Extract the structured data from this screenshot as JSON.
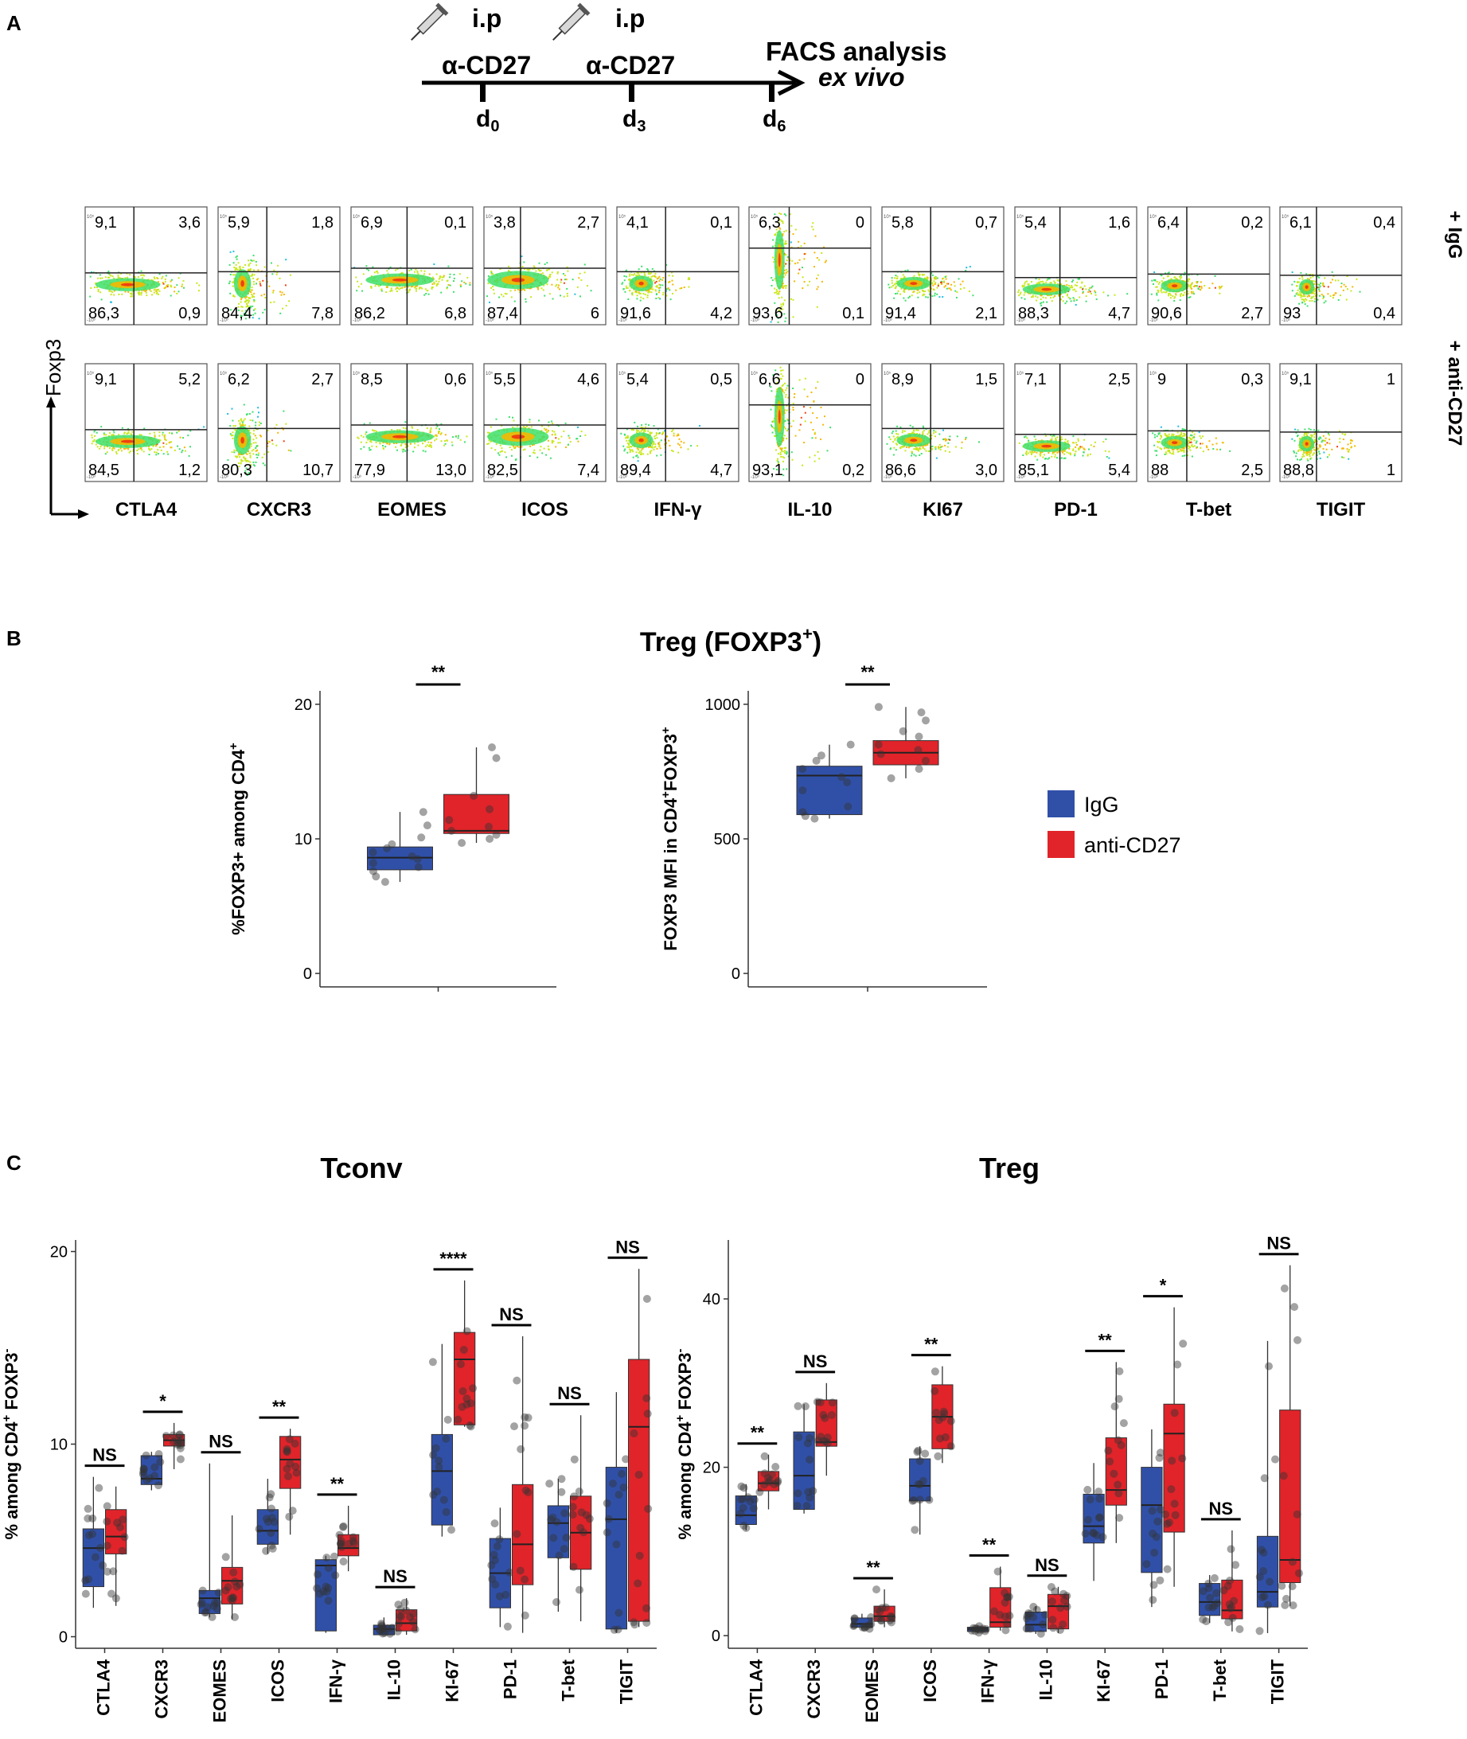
{
  "panel_labels": {
    "a": "A",
    "b": "B",
    "c": "C"
  },
  "timeline": {
    "inj1_route": "i.p",
    "inj2_route": "i.p",
    "inj1_label": "α-CD27",
    "inj2_label": "α-CD27",
    "end_label": "FACS analysis",
    "end_sub": "ex vivo",
    "days": [
      {
        "d": "d",
        "sub": "0"
      },
      {
        "d": "d",
        "sub": "3"
      },
      {
        "d": "d",
        "sub": "6"
      }
    ]
  },
  "facs": {
    "y_axis_label": "Foxp3",
    "row_labels": [
      "+ IgG",
      "+ anti-CD27"
    ],
    "markers": [
      {
        "name": "CTLA4",
        "igg": [
          "9,1",
          "3,6",
          "86,3",
          "0,9"
        ],
        "cd27": [
          "9,1",
          "5,2",
          "84,5",
          "1,2"
        ]
      },
      {
        "name": "CXCR3",
        "igg": [
          "5,9",
          "1,8",
          "84,4",
          "7,8"
        ],
        "cd27": [
          "6,2",
          "2,7",
          "80,3",
          "10,7"
        ]
      },
      {
        "name": "EOMES",
        "igg": [
          "6,9",
          "0,1",
          "86,2",
          "6,8"
        ],
        "cd27": [
          "8,5",
          "0,6",
          "77,9",
          "13,0"
        ]
      },
      {
        "name": "ICOS",
        "igg": [
          "3,8",
          "2,7",
          "87,4",
          "6"
        ],
        "cd27": [
          "5,5",
          "4,6",
          "82,5",
          "7,4"
        ]
      },
      {
        "name": "IFN-γ",
        "igg": [
          "4,1",
          "0,1",
          "91,6",
          "4,2"
        ],
        "cd27": [
          "5,4",
          "0,5",
          "89,4",
          "4,7"
        ]
      },
      {
        "name": "IL-10",
        "igg": [
          "6,3",
          "0",
          "93,6",
          "0,1"
        ],
        "cd27": [
          "6,6",
          "0",
          "93,1",
          "0,2"
        ]
      },
      {
        "name": "KI67",
        "igg": [
          "5,8",
          "0,7",
          "91,4",
          "2,1"
        ],
        "cd27": [
          "8,9",
          "1,5",
          "86,6",
          "3,0"
        ]
      },
      {
        "name": "PD-1",
        "igg": [
          "5,4",
          "1,6",
          "88,3",
          "4,7"
        ],
        "cd27": [
          "7,1",
          "2,5",
          "85,1",
          "5,4"
        ]
      },
      {
        "name": "T-bet",
        "igg": [
          "6,4",
          "0,2",
          "90,6",
          "2,7"
        ],
        "cd27": [
          "9",
          "0,3",
          "88",
          "2,5"
        ]
      },
      {
        "name": "TIGIT",
        "igg": [
          "6,1",
          "0,4",
          "93",
          "0,4"
        ],
        "cd27": [
          "9,1",
          "1",
          "88,8",
          "1"
        ]
      }
    ]
  },
  "panel_b": {
    "title": "Treg (FOXP3",
    "title_sup": "+",
    "title_end": ")",
    "legend": [
      {
        "label": "IgG",
        "color": "#3050a8"
      },
      {
        "label": "anti-CD27",
        "color": "#e0242a"
      }
    ]
  },
  "chart_data": [
    {
      "type": "box",
      "id": "b_left",
      "ylabel": "%FOXP3+ among CD4",
      "ylabel_sup": "+",
      "ylim": [
        -1,
        21
      ],
      "yticks": [
        "0",
        "10",
        "20"
      ],
      "groups": [
        {
          "name": "IgG",
          "q1": 7.7,
          "median": 8.6,
          "q3": 9.4,
          "lo": 6.8,
          "hi": 12.0,
          "points": [
            6.8,
            7.2,
            7.6,
            7.9,
            8.2,
            8.5,
            8.7,
            9.0,
            9.3,
            9.6,
            10.1,
            11.0,
            12.0
          ]
        },
        {
          "name": "anti-CD27",
          "q1": 10.4,
          "median": 10.6,
          "q3": 13.3,
          "lo": 9.7,
          "hi": 16.8,
          "points": [
            9.7,
            10.0,
            10.3,
            10.6,
            10.9,
            11.4,
            12.2,
            13.2,
            16.0,
            16.8
          ]
        }
      ],
      "significance": "**"
    },
    {
      "type": "box",
      "id": "b_right",
      "ylabel": "FOXP3 MFI in CD4",
      "ylabel_sup1": "+",
      "ylabel_mid": "FOXP3",
      "ylabel_sup2": "+",
      "ylim": [
        -50,
        1050
      ],
      "yticks": [
        "0",
        "500",
        "1000"
      ],
      "groups": [
        {
          "name": "IgG",
          "q1": 590,
          "median": 735,
          "q3": 770,
          "lo": 575,
          "hi": 850,
          "points": [
            575,
            585,
            600,
            620,
            680,
            710,
            730,
            760,
            790,
            810,
            850
          ]
        },
        {
          "name": "anti-CD27",
          "q1": 775,
          "median": 820,
          "q3": 865,
          "lo": 725,
          "hi": 990,
          "points": [
            725,
            760,
            790,
            815,
            830,
            850,
            880,
            900,
            940,
            970,
            990
          ]
        }
      ],
      "significance": "**"
    },
    {
      "type": "box",
      "id": "c_tconv",
      "title": "Tconv",
      "ylabel": "% among CD4",
      "ylabel_sup1": "+",
      "ylabel_mid": " FOXP3",
      "ylabel_sup2": "-",
      "ylim": [
        -0.6,
        20.6
      ],
      "yticks": [
        "0",
        "10",
        "20"
      ],
      "categories": [
        "CTLA4",
        "CXCR3",
        "EOMES",
        "ICOS",
        "IFN-γ",
        "IL-10",
        "KI-67",
        "PD-1",
        "T-bet",
        "TIGIT"
      ],
      "series": [
        {
          "name": "IgG",
          "boxes": [
            {
              "lo": 1.5,
              "q1": 2.6,
              "med": 4.6,
              "q3": 5.6,
              "hi": 8.3
            },
            {
              "lo": 7.6,
              "q1": 7.9,
              "med": 8.2,
              "q3": 9.4,
              "hi": 9.6
            },
            {
              "lo": 1.0,
              "q1": 1.2,
              "med": 2.0,
              "q3": 2.4,
              "hi": 9.0
            },
            {
              "lo": 4.3,
              "q1": 4.8,
              "med": 5.5,
              "q3": 6.6,
              "hi": 8.2
            },
            {
              "lo": 0.2,
              "q1": 0.3,
              "med": 3.7,
              "q3": 4.0,
              "hi": 4.2
            },
            {
              "lo": 0.1,
              "q1": 0.1,
              "med": 0.4,
              "q3": 0.6,
              "hi": 1.0
            },
            {
              "lo": 5.2,
              "q1": 5.8,
              "med": 8.6,
              "q3": 10.5,
              "hi": 15.2
            },
            {
              "lo": 0.5,
              "q1": 1.5,
              "med": 3.3,
              "q3": 5.1,
              "hi": 6.7
            },
            {
              "lo": 1.3,
              "q1": 4.1,
              "med": 5.9,
              "q3": 6.8,
              "hi": 8.2
            },
            {
              "lo": 0.2,
              "q1": 0.4,
              "med": 6.1,
              "q3": 8.8,
              "hi": 12.7
            }
          ]
        },
        {
          "name": "anti-CD27",
          "boxes": [
            {
              "lo": 1.6,
              "q1": 4.3,
              "med": 5.2,
              "q3": 6.6,
              "hi": 7.8
            },
            {
              "lo": 8.7,
              "q1": 9.9,
              "med": 10.2,
              "q3": 10.5,
              "hi": 11.1
            },
            {
              "lo": 0.9,
              "q1": 1.7,
              "med": 2.9,
              "q3": 3.6,
              "hi": 6.3
            },
            {
              "lo": 5.3,
              "q1": 7.7,
              "med": 9.2,
              "q3": 10.4,
              "hi": 10.8
            },
            {
              "lo": 3.4,
              "q1": 4.2,
              "med": 4.6,
              "q3": 5.3,
              "hi": 6.8
            },
            {
              "lo": 0.1,
              "q1": 0.3,
              "med": 0.7,
              "q3": 1.4,
              "hi": 2.0
            },
            {
              "lo": 10.9,
              "q1": 11.0,
              "med": 14.4,
              "q3": 15.8,
              "hi": 18.5
            },
            {
              "lo": 0.2,
              "q1": 2.7,
              "med": 4.8,
              "q3": 7.9,
              "hi": 15.6
            },
            {
              "lo": 0.8,
              "q1": 3.5,
              "med": 5.4,
              "q3": 7.3,
              "hi": 11.5
            },
            {
              "lo": 0.5,
              "q1": 0.8,
              "med": 10.9,
              "q3": 14.4,
              "hi": 19.1
            }
          ]
        }
      ],
      "significance": [
        "NS",
        "*",
        "NS",
        "**",
        "**",
        "NS",
        "****",
        "NS",
        "NS",
        "NS"
      ]
    },
    {
      "type": "box",
      "id": "c_treg",
      "title": "Treg",
      "ylabel": "% among CD4",
      "ylabel_sup1": "+",
      "ylabel_mid": " FOXP3",
      "ylabel_sup2": "-",
      "ylim": [
        -1.5,
        47
      ],
      "yticks": [
        "0",
        "20",
        "40"
      ],
      "categories": [
        "CTLA4",
        "CXCR3",
        "EOMES",
        "ICOS",
        "IFN-γ",
        "IL-10",
        "KI-67",
        "PD-1",
        "T-bet",
        "TIGIT"
      ],
      "series": [
        {
          "name": "IgG",
          "boxes": [
            {
              "lo": 12.5,
              "q1": 13.2,
              "med": 14.3,
              "q3": 16.6,
              "hi": 18.0
            },
            {
              "lo": 14.5,
              "q1": 15.0,
              "med": 19.0,
              "q3": 24.2,
              "hi": 27.5
            },
            {
              "lo": 0.8,
              "q1": 1.0,
              "med": 1.4,
              "q3": 2.1,
              "hi": 2.6
            },
            {
              "lo": 12.0,
              "q1": 16.0,
              "med": 17.8,
              "q3": 21.0,
              "hi": 22.5
            },
            {
              "lo": 0.3,
              "q1": 0.5,
              "med": 0.8,
              "q3": 1.0,
              "hi": 1.2
            },
            {
              "lo": 0.2,
              "q1": 0.5,
              "med": 1.3,
              "q3": 2.8,
              "hi": 3.5
            },
            {
              "lo": 6.5,
              "q1": 11.0,
              "med": 13.0,
              "q3": 16.8,
              "hi": 20.5
            },
            {
              "lo": 3.4,
              "q1": 7.5,
              "med": 15.5,
              "q3": 20.0,
              "hi": 24.5
            },
            {
              "lo": 1.5,
              "q1": 2.4,
              "med": 4.0,
              "q3": 6.2,
              "hi": 7.2
            },
            {
              "lo": 0.3,
              "q1": 3.4,
              "med": 5.2,
              "q3": 11.8,
              "hi": 35.0
            }
          ]
        },
        {
          "name": "anti-CD27",
          "boxes": [
            {
              "lo": 15.0,
              "q1": 17.2,
              "med": 18.1,
              "q3": 19.5,
              "hi": 21.5
            },
            {
              "lo": 19.0,
              "q1": 22.5,
              "med": 23.0,
              "q3": 28.0,
              "hi": 30.0
            },
            {
              "lo": 1.0,
              "q1": 1.7,
              "med": 2.3,
              "q3": 3.5,
              "hi": 5.5
            },
            {
              "lo": 20.5,
              "q1": 22.2,
              "med": 26.0,
              "q3": 29.8,
              "hi": 32.0
            },
            {
              "lo": 0.6,
              "q1": 1.0,
              "med": 1.6,
              "q3": 5.7,
              "hi": 8.2
            },
            {
              "lo": 0.3,
              "q1": 0.8,
              "med": 3.5,
              "q3": 4.9,
              "hi": 5.8
            },
            {
              "lo": 11.0,
              "q1": 15.5,
              "med": 17.3,
              "q3": 23.5,
              "hi": 32.5
            },
            {
              "lo": 5.8,
              "q1": 12.3,
              "med": 24.0,
              "q3": 27.5,
              "hi": 39.0
            },
            {
              "lo": 0.5,
              "q1": 2.0,
              "med": 3.0,
              "q3": 6.6,
              "hi": 12.5
            },
            {
              "lo": 3.5,
              "q1": 6.3,
              "med": 9.0,
              "q3": 26.8,
              "hi": 44.0
            }
          ]
        }
      ],
      "significance": [
        "**",
        "NS",
        "**",
        "**",
        "**",
        "NS",
        "**",
        "*",
        "NS",
        "NS"
      ]
    }
  ]
}
